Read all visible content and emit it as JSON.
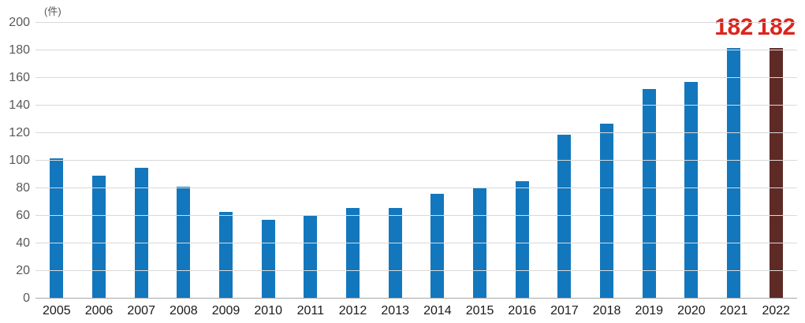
{
  "chart_data": {
    "type": "bar",
    "title": "",
    "unit_label": "(件)",
    "xlabel": "",
    "ylabel": "(件)",
    "categories": [
      "2005",
      "2006",
      "2007",
      "2008",
      "2009",
      "2010",
      "2011",
      "2012",
      "2013",
      "2014",
      "2015",
      "2016",
      "2017",
      "2018",
      "2019",
      "2020",
      "2021",
      "2022"
    ],
    "values": [
      102,
      89,
      95,
      81,
      63,
      57,
      60,
      66,
      66,
      76,
      80,
      85,
      119,
      127,
      152,
      157,
      182,
      182
    ],
    "data_labels": [
      "",
      "",
      "",
      "",
      "",
      "",
      "",
      "",
      "",
      "",
      "",
      "",
      "",
      "",
      "",
      "",
      "182",
      "182"
    ],
    "ylim": [
      0,
      200
    ],
    "ytick_step": 20,
    "grid": true,
    "legend": false,
    "colors": {
      "bar_default": "#1377bd",
      "bar_highlight": "#5e2a26",
      "data_label": "#dc251c",
      "gridline": "#d9d9d9",
      "axis_line": "#a6a6a6",
      "y_tick_text": "#595959",
      "x_tick_text": "#1a1a1a",
      "background": "#ffffff"
    },
    "bar_color_overrides": {
      "17": "#5e2a26"
    }
  }
}
